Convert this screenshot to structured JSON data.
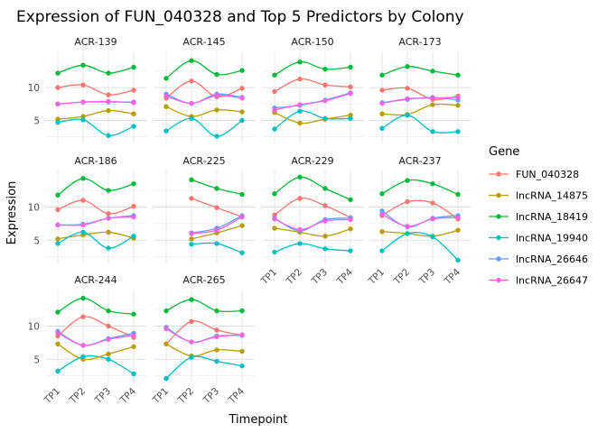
{
  "chart_data": {
    "type": "line",
    "title": "Expression of FUN_040328 and Top 5 Predictors by Colony",
    "xlabel": "Timepoint",
    "ylabel": "Expression",
    "x": [
      "TP1",
      "TP2",
      "TP3",
      "TP4"
    ],
    "y_ticks": [
      5,
      10
    ],
    "ylim": [
      1.5,
      15.5
    ],
    "grid": true,
    "legend": {
      "title": "Gene",
      "position": "right"
    },
    "series_styles": [
      {
        "name": "FUN_040328",
        "color": "#F8766D"
      },
      {
        "name": "lncRNA_14875",
        "color": "#B79F00"
      },
      {
        "name": "lncRNA_18419",
        "color": "#00BA38"
      },
      {
        "name": "lncRNA_19940",
        "color": "#00BFC4"
      },
      {
        "name": "lncRNA_26646",
        "color": "#619CFF"
      },
      {
        "name": "lncRNA_26647",
        "color": "#F564E3"
      }
    ],
    "panels": [
      {
        "colony": "ACR-139",
        "series": {
          "FUN_040328": [
            10.0,
            10.4,
            8.9,
            9.6
          ],
          "lncRNA_14875": [
            5.2,
            5.6,
            6.5,
            6.0
          ],
          "lncRNA_18419": [
            12.2,
            13.4,
            12.2,
            13.1
          ],
          "lncRNA_19940": [
            4.7,
            5.1,
            2.7,
            4.1
          ],
          "lncRNA_26646": [
            7.5,
            7.8,
            7.8,
            7.8
          ],
          "lncRNA_26647": [
            7.5,
            7.8,
            7.9,
            7.7
          ]
        }
      },
      {
        "colony": "ACR-145",
        "series": {
          "FUN_040328": [
            8.4,
            11.0,
            8.6,
            9.9
          ],
          "lncRNA_14875": [
            7.1,
            5.6,
            6.6,
            6.3
          ],
          "lncRNA_18419": [
            11.4,
            14.1,
            12.0,
            12.6
          ],
          "lncRNA_19940": [
            3.4,
            5.3,
            2.6,
            5.0
          ],
          "lncRNA_26646": [
            9.0,
            7.6,
            9.0,
            8.5
          ],
          "lncRNA_26647": [
            8.7,
            7.6,
            8.8,
            8.4
          ]
        }
      },
      {
        "colony": "ACR-150",
        "series": {
          "FUN_040328": [
            9.4,
            11.3,
            10.4,
            10.1
          ],
          "lncRNA_14875": [
            6.2,
            4.6,
            5.2,
            5.8
          ],
          "lncRNA_18419": [
            11.9,
            13.9,
            12.8,
            13.1
          ],
          "lncRNA_19940": [
            3.7,
            6.4,
            5.3,
            5.3
          ],
          "lncRNA_26646": [
            6.9,
            7.3,
            8.1,
            9.2
          ],
          "lncRNA_26647": [
            6.6,
            7.4,
            8.0,
            9.1
          ]
        }
      },
      {
        "colony": "ACR-173",
        "series": {
          "FUN_040328": [
            9.6,
            9.9,
            8.2,
            8.7
          ],
          "lncRNA_14875": [
            6.0,
            5.9,
            7.4,
            7.3
          ],
          "lncRNA_18419": [
            11.9,
            13.2,
            12.5,
            11.9
          ],
          "lncRNA_19940": [
            3.8,
            5.8,
            3.3,
            3.3
          ],
          "lncRNA_26646": [
            7.7,
            8.2,
            8.5,
            8.1
          ],
          "lncRNA_26647": [
            7.6,
            8.3,
            8.4,
            8.5
          ]
        }
      },
      {
        "colony": "ACR-186",
        "series": {
          "FUN_040328": [
            9.6,
            11.0,
            9.0,
            10.1
          ],
          "lncRNA_14875": [
            5.2,
            5.8,
            6.2,
            5.3
          ],
          "lncRNA_18419": [
            11.8,
            14.3,
            12.5,
            13.5
          ],
          "lncRNA_19940": [
            4.5,
            6.2,
            3.8,
            5.6
          ],
          "lncRNA_26646": [
            7.3,
            7.4,
            8.3,
            8.7
          ],
          "lncRNA_26647": [
            7.3,
            7.3,
            8.3,
            8.5
          ]
        }
      },
      {
        "colony": "ACR-225",
        "series": {
          "FUN_040328": [
            null,
            11.3,
            9.9,
            8.5
          ],
          "lncRNA_14875": [
            null,
            5.2,
            6.1,
            7.2
          ],
          "lncRNA_18419": [
            null,
            14.1,
            12.8,
            11.9
          ],
          "lncRNA_19940": [
            null,
            4.4,
            4.5,
            3.1
          ],
          "lncRNA_26646": [
            null,
            6.1,
            6.8,
            8.7
          ],
          "lncRNA_26647": [
            null,
            6.0,
            6.5,
            8.5
          ]
        }
      },
      {
        "colony": "ACR-229",
        "series": {
          "FUN_040328": [
            8.8,
            11.3,
            10.2,
            8.4
          ],
          "lncRNA_14875": [
            6.8,
            6.2,
            5.6,
            6.7
          ],
          "lncRNA_18419": [
            12.0,
            14.5,
            12.8,
            11.1
          ],
          "lncRNA_19940": [
            3.2,
            4.5,
            3.7,
            3.4
          ],
          "lncRNA_26646": [
            8.3,
            6.4,
            8.1,
            8.3
          ],
          "lncRNA_26647": [
            8.2,
            6.6,
            7.9,
            8.1
          ]
        }
      },
      {
        "colony": "ACR-237",
        "series": {
          "FUN_040328": [
            8.7,
            10.8,
            10.6,
            8.2
          ],
          "lncRNA_14875": [
            6.3,
            6.0,
            5.6,
            6.5
          ],
          "lncRNA_18419": [
            12.0,
            14.0,
            13.5,
            11.9
          ],
          "lncRNA_19940": [
            3.4,
            6.0,
            5.5,
            2.0
          ],
          "lncRNA_26646": [
            9.4,
            7.0,
            8.3,
            8.7
          ],
          "lncRNA_26647": [
            8.9,
            7.1,
            8.2,
            8.4
          ]
        }
      },
      {
        "colony": "ACR-244",
        "series": {
          "FUN_040328": [
            8.5,
            11.4,
            10.0,
            8.3
          ],
          "lncRNA_14875": [
            7.3,
            5.0,
            5.8,
            6.9
          ],
          "lncRNA_18419": [
            12.1,
            14.2,
            12.3,
            11.8
          ],
          "lncRNA_19940": [
            3.2,
            5.4,
            5.0,
            2.8
          ],
          "lncRNA_26646": [
            9.2,
            7.1,
            8.1,
            8.9
          ],
          "lncRNA_26647": [
            9.0,
            7.1,
            8.0,
            8.6
          ]
        }
      },
      {
        "colony": "ACR-265",
        "series": {
          "FUN_040328": [
            7.3,
            10.7,
            9.4,
            8.6
          ],
          "lncRNA_14875": [
            7.3,
            5.5,
            6.4,
            6.2
          ],
          "lncRNA_18419": [
            12.3,
            14.0,
            12.3,
            12.3
          ],
          "lncRNA_19940": [
            2.1,
            5.3,
            4.7,
            4.0
          ],
          "lncRNA_26646": [
            9.8,
            7.6,
            8.5,
            8.6
          ],
          "lncRNA_26647": [
            9.6,
            7.6,
            8.4,
            8.7
          ]
        }
      }
    ]
  }
}
